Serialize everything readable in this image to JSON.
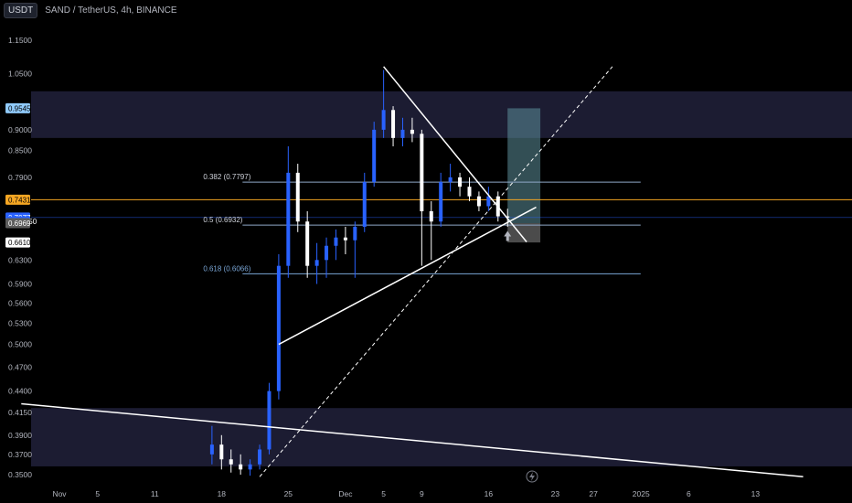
{
  "header": {
    "currency_button": "USDT",
    "symbol": "SAND / TetherUS, 4h, BINANCE"
  },
  "colors": {
    "candle_up": "#2962ff",
    "candle_down": "#ffffff",
    "zone": "#1c1c32",
    "fib": "#8fa8c8",
    "fib_618": "#7aa6d6",
    "orange": "#f5a623",
    "blue": "#2962ff",
    "long_target": "#5d8f9b",
    "long_stop": "#6b6b6b"
  },
  "chart_data": {
    "type": "candlestick",
    "y_axis": {
      "min": 0.35,
      "max": 1.15,
      "scale": "log",
      "ticks": [
        1.15,
        1.05,
        0.9,
        0.85,
        0.79,
        0.63,
        0.59,
        0.56,
        0.53,
        0.5,
        0.47,
        0.44,
        0.415,
        0.39,
        0.37,
        0.35
      ],
      "tick_labels": [
        "1.1500",
        "1.0500",
        "0.9000",
        "0.8500",
        "0.7900",
        "0.6300",
        "0.5900",
        "0.5600",
        "0.5300",
        "0.5000",
        "0.4700",
        "0.4400",
        "0.4150",
        "0.3900",
        "0.3700",
        "0.3500"
      ]
    },
    "x_axis": {
      "range": [
        "2024-10-28",
        "2025-01-18"
      ],
      "ticks": [
        {
          "date": "2024-11-01",
          "label": "Nov"
        },
        {
          "date": "2024-11-05",
          "label": "5"
        },
        {
          "date": "2024-11-11",
          "label": "11"
        },
        {
          "date": "2024-11-18",
          "label": "18"
        },
        {
          "date": "2024-11-25",
          "label": "25"
        },
        {
          "date": "2024-12-01",
          "label": "Dec"
        },
        {
          "date": "2024-12-05",
          "label": "5"
        },
        {
          "date": "2024-12-09",
          "label": "9"
        },
        {
          "date": "2024-12-16",
          "label": "16"
        },
        {
          "date": "2024-12-23",
          "label": "23"
        },
        {
          "date": "2024-12-27",
          "label": "27"
        },
        {
          "date": "2025-01-01",
          "label": "2025"
        },
        {
          "date": "2025-01-06",
          "label": "6"
        },
        {
          "date": "2025-01-13",
          "label": "13"
        }
      ]
    },
    "price_badges": [
      {
        "value": 0.9545,
        "label": "0.9545",
        "bg": "#90caf9",
        "fg": "#000000"
      },
      {
        "value": 0.7431,
        "label": "0.7431",
        "bg": "#f5a623",
        "fg": "#000000"
      },
      {
        "value": 0.7077,
        "label": "0.7077",
        "bg": "#2962ff",
        "fg": "#ffffff"
      },
      {
        "value": 0.7,
        "label": "02:20:50",
        "bg": "#2962ff",
        "fg": "#ffffff"
      },
      {
        "value": 0.6969,
        "label": "0.6969",
        "bg": "#5d5d5d",
        "fg": "#ffffff"
      },
      {
        "value": 0.661,
        "label": "0.6610",
        "bg": "#ffffff",
        "fg": "#000000"
      }
    ],
    "zones": [
      {
        "from": 0.88,
        "to": 1.0
      },
      {
        "from": 0.358,
        "to": 0.42
      }
    ],
    "fib_levels": [
      {
        "level": "0.382",
        "value": 0.7797,
        "label": "0.382 (0.7797)",
        "from": "2024-11-25",
        "to": "2024-12-31"
      },
      {
        "level": "0.5",
        "value": 0.6932,
        "label": "0.5 (0.6932)",
        "from": "2024-11-25",
        "to": "2024-12-31"
      },
      {
        "level": "0.618",
        "value": 0.6066,
        "label": "0.618 (0.6066)",
        "from": "2024-11-25",
        "to": "2024-12-31"
      }
    ],
    "horizontal_lines": [
      {
        "value": 0.7431,
        "color": "orange"
      },
      {
        "value": 0.7077,
        "color": "blue"
      }
    ],
    "trendlines": [
      {
        "from": [
          "2024-11-24",
          0.5
        ],
        "to": [
          "2024-12-21",
          0.728
        ],
        "style": "solid",
        "width": 1.5
      },
      {
        "from": [
          "2024-12-05",
          1.07
        ],
        "to": [
          "2024-12-20",
          0.662
        ],
        "style": "solid",
        "width": 1.5
      },
      {
        "from": [
          "2024-10-28",
          0.425
        ],
        "to": [
          "2025-01-18",
          0.348
        ],
        "style": "solid",
        "width": 1.5
      },
      {
        "from": [
          "2024-11-22",
          0.348
        ],
        "to": [
          "2024-12-29",
          1.07
        ],
        "style": "dashed",
        "width": 1
      }
    ],
    "long_position": {
      "from": "2024-12-18",
      "to": "2024-12-20",
      "entry": 0.6969,
      "target": 0.9545,
      "stop": 0.661
    },
    "arrow": {
      "date": "2024-12-18",
      "value": 0.672
    },
    "ohlc": [
      [
        "2024-11-17",
        0.37,
        0.4,
        0.36,
        0.38
      ],
      [
        "2024-11-18",
        0.38,
        0.39,
        0.355,
        0.365
      ],
      [
        "2024-11-19",
        0.365,
        0.375,
        0.352,
        0.36
      ],
      [
        "2024-11-20",
        0.36,
        0.37,
        0.35,
        0.355
      ],
      [
        "2024-11-21",
        0.355,
        0.365,
        0.349,
        0.36
      ],
      [
        "2024-11-22",
        0.36,
        0.38,
        0.355,
        0.375
      ],
      [
        "2024-11-23",
        0.375,
        0.45,
        0.37,
        0.44
      ],
      [
        "2024-11-24",
        0.44,
        0.64,
        0.43,
        0.62
      ],
      [
        "2024-11-25",
        0.62,
        0.86,
        0.6,
        0.8
      ],
      [
        "2024-11-26",
        0.8,
        0.82,
        0.68,
        0.7
      ],
      [
        "2024-11-27",
        0.7,
        0.72,
        0.6,
        0.62
      ],
      [
        "2024-11-28",
        0.62,
        0.66,
        0.59,
        0.63
      ],
      [
        "2024-11-29",
        0.63,
        0.67,
        0.6,
        0.655
      ],
      [
        "2024-11-30",
        0.655,
        0.685,
        0.63,
        0.67
      ],
      [
        "2024-12-01",
        0.67,
        0.69,
        0.64,
        0.665
      ],
      [
        "2024-12-02",
        0.665,
        0.7,
        0.6,
        0.69
      ],
      [
        "2024-12-03",
        0.69,
        0.8,
        0.68,
        0.78
      ],
      [
        "2024-12-04",
        0.78,
        0.92,
        0.77,
        0.9
      ],
      [
        "2024-12-05",
        0.9,
        1.06,
        0.88,
        0.95
      ],
      [
        "2024-12-06",
        0.95,
        0.96,
        0.86,
        0.88
      ],
      [
        "2024-12-07",
        0.88,
        0.93,
        0.86,
        0.9
      ],
      [
        "2024-12-08",
        0.9,
        0.93,
        0.87,
        0.89
      ],
      [
        "2024-12-09",
        0.89,
        0.9,
        0.62,
        0.72
      ],
      [
        "2024-12-10",
        0.72,
        0.74,
        0.63,
        0.7
      ],
      [
        "2024-12-11",
        0.7,
        0.8,
        0.69,
        0.78
      ],
      [
        "2024-12-12",
        0.78,
        0.82,
        0.76,
        0.79
      ],
      [
        "2024-12-13",
        0.79,
        0.8,
        0.75,
        0.77
      ],
      [
        "2024-12-14",
        0.77,
        0.79,
        0.74,
        0.75
      ],
      [
        "2024-12-15",
        0.75,
        0.76,
        0.72,
        0.73
      ],
      [
        "2024-12-16",
        0.73,
        0.77,
        0.72,
        0.75
      ],
      [
        "2024-12-17",
        0.75,
        0.76,
        0.7,
        0.71
      ],
      [
        "2024-12-18",
        0.71,
        0.725,
        0.69,
        0.7077
      ]
    ]
  }
}
